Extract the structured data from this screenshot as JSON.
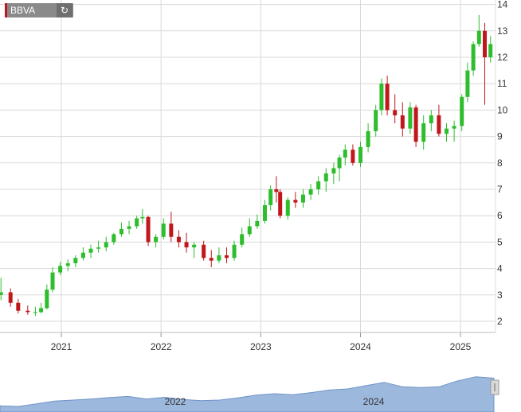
{
  "symbol": {
    "name": "BBVA",
    "refresh_icon": "refresh-icon",
    "accent": "#c0171c"
  },
  "range": {
    "start": "2020-05-04",
    "end": "2025-05-02",
    "icon": "resize-horizontal-icon"
  },
  "colors": {
    "up": "#2dbd2d",
    "down": "#c0171c",
    "grid": "#d9d9d9",
    "navigator": "#9db8dd"
  },
  "chart_data": {
    "type": "candlestick",
    "title": "",
    "ylim": [
      1.5,
      14
    ],
    "yticks": [
      2,
      3,
      4,
      5,
      6,
      7,
      8,
      9,
      10,
      11,
      12,
      13,
      14
    ],
    "xticks": [
      "2021",
      "2022",
      "2023",
      "2024",
      "2025"
    ],
    "series": [
      {
        "values": [
          [
            "2020-04-27",
            2.75,
            3.35,
            2.6,
            3.0
          ],
          [
            "2020-05-25",
            3.0,
            3.65,
            2.8,
            3.1
          ],
          [
            "2020-06-29",
            3.1,
            3.25,
            2.55,
            2.7
          ],
          [
            "2020-07-27",
            2.7,
            2.85,
            2.3,
            2.4
          ],
          [
            "2020-08-31",
            2.4,
            2.6,
            2.25,
            2.35
          ],
          [
            "2020-09-28",
            2.35,
            2.55,
            2.2,
            2.35
          ],
          [
            "2020-10-19",
            2.35,
            2.7,
            2.3,
            2.5
          ],
          [
            "2020-11-09",
            2.5,
            3.4,
            2.45,
            3.2
          ],
          [
            "2020-11-30",
            3.2,
            4.05,
            3.1,
            3.85
          ],
          [
            "2020-12-28",
            3.85,
            4.25,
            3.75,
            4.1
          ],
          [
            "2021-01-25",
            4.1,
            4.35,
            3.9,
            4.2
          ],
          [
            "2021-02-22",
            4.2,
            4.5,
            4.05,
            4.4
          ],
          [
            "2021-03-22",
            4.4,
            4.8,
            4.3,
            4.6
          ],
          [
            "2021-04-19",
            4.6,
            4.9,
            4.4,
            4.75
          ],
          [
            "2021-05-17",
            4.75,
            5.05,
            4.6,
            4.8
          ],
          [
            "2021-06-14",
            4.8,
            5.2,
            4.65,
            5.0
          ],
          [
            "2021-07-12",
            5.0,
            5.35,
            4.9,
            5.3
          ],
          [
            "2021-08-09",
            5.3,
            5.75,
            5.2,
            5.5
          ],
          [
            "2021-09-06",
            5.5,
            5.8,
            5.3,
            5.6
          ],
          [
            "2021-10-04",
            5.6,
            6.0,
            5.5,
            5.9
          ],
          [
            "2021-10-25",
            5.9,
            6.25,
            5.7,
            5.95
          ],
          [
            "2021-11-15",
            5.95,
            6.0,
            4.85,
            5.0
          ],
          [
            "2021-12-13",
            5.0,
            5.3,
            4.8,
            5.2
          ],
          [
            "2022-01-10",
            5.2,
            5.9,
            5.1,
            5.7
          ],
          [
            "2022-02-07",
            5.7,
            6.15,
            5.0,
            5.2
          ],
          [
            "2022-03-07",
            5.2,
            5.45,
            4.8,
            5.0
          ],
          [
            "2022-04-04",
            5.0,
            5.35,
            4.6,
            4.8
          ],
          [
            "2022-05-02",
            4.8,
            5.0,
            4.4,
            4.9
          ],
          [
            "2022-06-06",
            4.9,
            5.05,
            4.3,
            4.4
          ],
          [
            "2022-07-04",
            4.4,
            4.7,
            4.05,
            4.3
          ],
          [
            "2022-08-01",
            4.3,
            4.8,
            4.2,
            4.5
          ],
          [
            "2022-08-29",
            4.5,
            4.8,
            4.2,
            4.4
          ],
          [
            "2022-09-26",
            4.4,
            5.05,
            4.3,
            4.9
          ],
          [
            "2022-10-24",
            4.9,
            5.55,
            4.8,
            5.3
          ],
          [
            "2022-11-21",
            5.3,
            5.9,
            5.2,
            5.6
          ],
          [
            "2022-12-19",
            5.6,
            6.05,
            5.5,
            5.8
          ],
          [
            "2023-01-16",
            5.8,
            6.6,
            5.7,
            6.4
          ],
          [
            "2023-02-06",
            6.4,
            7.15,
            6.2,
            7.0
          ],
          [
            "2023-02-27",
            7.0,
            7.5,
            6.5,
            6.9
          ],
          [
            "2023-03-13",
            6.9,
            7.0,
            5.9,
            6.0
          ],
          [
            "2023-04-10",
            6.0,
            6.7,
            5.85,
            6.6
          ],
          [
            "2023-05-08",
            6.6,
            6.9,
            6.3,
            6.5
          ],
          [
            "2023-06-05",
            6.5,
            7.0,
            6.3,
            6.8
          ],
          [
            "2023-07-03",
            6.8,
            7.2,
            6.6,
            7.0
          ],
          [
            "2023-07-31",
            7.0,
            7.5,
            6.8,
            7.3
          ],
          [
            "2023-08-28",
            7.3,
            7.8,
            6.9,
            7.6
          ],
          [
            "2023-09-25",
            7.6,
            8.0,
            7.2,
            7.8
          ],
          [
            "2023-10-16",
            7.8,
            8.3,
            7.3,
            8.2
          ],
          [
            "2023-11-06",
            8.2,
            8.7,
            7.9,
            8.5
          ],
          [
            "2023-12-04",
            8.5,
            8.7,
            7.9,
            8.0
          ],
          [
            "2024-01-01",
            8.0,
            8.8,
            7.85,
            8.6
          ],
          [
            "2024-01-29",
            8.6,
            9.5,
            8.4,
            9.2
          ],
          [
            "2024-02-26",
            9.2,
            10.2,
            9.0,
            10.0
          ],
          [
            "2024-03-18",
            10.0,
            11.2,
            9.8,
            11.0
          ],
          [
            "2024-04-08",
            11.0,
            11.3,
            9.8,
            10.0
          ],
          [
            "2024-05-06",
            10.0,
            10.6,
            9.5,
            9.8
          ],
          [
            "2024-06-03",
            9.8,
            10.3,
            9.0,
            9.3
          ],
          [
            "2024-07-01",
            9.3,
            10.3,
            9.1,
            10.1
          ],
          [
            "2024-07-22",
            10.1,
            10.2,
            8.6,
            8.8
          ],
          [
            "2024-08-19",
            8.8,
            9.8,
            8.5,
            9.5
          ],
          [
            "2024-09-16",
            9.5,
            10.0,
            9.2,
            9.8
          ],
          [
            "2024-10-14",
            9.8,
            10.2,
            9.0,
            9.1
          ],
          [
            "2024-11-11",
            9.1,
            9.5,
            8.8,
            9.3
          ],
          [
            "2024-12-09",
            9.3,
            9.6,
            8.8,
            9.4
          ],
          [
            "2025-01-06",
            9.4,
            10.6,
            9.2,
            10.5
          ],
          [
            "2025-01-27",
            10.5,
            11.8,
            10.3,
            11.5
          ],
          [
            "2025-02-17",
            11.5,
            12.6,
            11.3,
            12.5
          ],
          [
            "2025-03-10",
            12.5,
            13.6,
            12.4,
            13.0
          ],
          [
            "2025-03-31",
            13.0,
            13.3,
            10.2,
            12.0
          ],
          [
            "2025-04-21",
            12.0,
            12.8,
            11.8,
            12.5
          ]
        ]
      }
    ],
    "navigator": {
      "xticks": [
        "2022",
        "2024"
      ],
      "values": [
        2.5,
        2.3,
        3.2,
        4.2,
        4.6,
        5.0,
        5.5,
        5.9,
        5.0,
        5.6,
        4.8,
        4.4,
        4.6,
        5.4,
        6.4,
        6.9,
        6.5,
        7.3,
        8.2,
        8.6,
        9.8,
        11.0,
        9.4,
        9.1,
        9.4,
        11.5,
        13.0,
        12.5
      ]
    }
  }
}
